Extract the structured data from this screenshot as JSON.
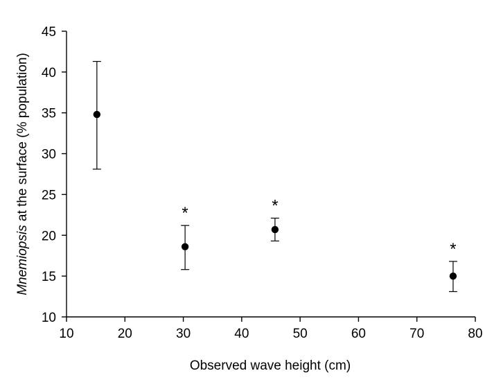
{
  "chart_data": {
    "type": "scatter",
    "xlabel": "Observed wave height (cm)",
    "ylabel_italic": "Mnemiopsis",
    "ylabel_rest": " at the surface (% population)",
    "xlim": [
      10,
      80
    ],
    "ylim": [
      10,
      45
    ],
    "xticks": [
      10,
      20,
      30,
      40,
      50,
      60,
      70,
      80
    ],
    "yticks": [
      10,
      15,
      20,
      25,
      30,
      35,
      40,
      45
    ],
    "grid": false,
    "legend": "none",
    "points": [
      {
        "x": 15.2,
        "y": 34.8,
        "err_low": 28.1,
        "err_high": 41.3,
        "annotation": ""
      },
      {
        "x": 30.3,
        "y": 18.6,
        "err_low": 15.8,
        "err_high": 21.2,
        "annotation": "*"
      },
      {
        "x": 45.7,
        "y": 20.7,
        "err_low": 19.3,
        "err_high": 22.1,
        "annotation": "*"
      },
      {
        "x": 76.2,
        "y": 15.0,
        "err_low": 13.1,
        "err_high": 16.8,
        "annotation": "*"
      }
    ]
  }
}
